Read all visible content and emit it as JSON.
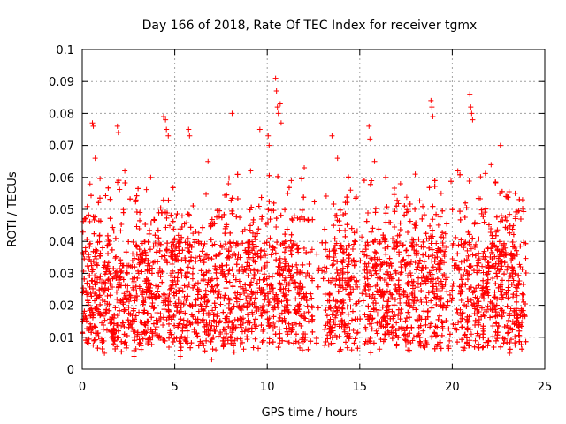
{
  "chart_data": {
    "type": "scatter",
    "title": "Day 166 of 2018, Rate Of TEC Index for receiver tgmx",
    "xlabel": "GPS time / hours",
    "ylabel": "ROTI / TECUs",
    "xlim": [
      0,
      25
    ],
    "ylim": [
      0,
      0.1
    ],
    "xticks": [
      0,
      5,
      10,
      15,
      20,
      25
    ],
    "xtick_labels": [
      "0",
      "5",
      "10",
      "15",
      "20",
      "25"
    ],
    "yticks": [
      0,
      0.01,
      0.02,
      0.03,
      0.04,
      0.05,
      0.06,
      0.07,
      0.08,
      0.09,
      0.1
    ],
    "ytick_labels": [
      "0",
      "0.01",
      "0.02",
      "0.03",
      "0.04",
      "0.05",
      "0.06",
      "0.07",
      "0.08",
      "0.09",
      "0.1"
    ],
    "grid": true,
    "marker": "+",
    "color": "#ff0000",
    "series": [
      {
        "name": "ROTI",
        "note": "dense band of points roughly 0.005–0.055 TECU across 0–24 h, sparse data gaps near 12.5–13 h and 15 h",
        "points": [
          [
            0.55,
            0.077
          ],
          [
            0.6,
            0.076
          ],
          [
            1.9,
            0.076
          ],
          [
            1.95,
            0.074
          ],
          [
            4.4,
            0.079
          ],
          [
            4.5,
            0.078
          ],
          [
            4.55,
            0.075
          ],
          [
            4.65,
            0.073
          ],
          [
            5.75,
            0.075
          ],
          [
            5.8,
            0.073
          ],
          [
            8.1,
            0.08
          ],
          [
            9.6,
            0.075
          ],
          [
            10.05,
            0.073
          ],
          [
            10.1,
            0.07
          ],
          [
            10.45,
            0.091
          ],
          [
            10.5,
            0.087
          ],
          [
            10.55,
            0.082
          ],
          [
            10.6,
            0.08
          ],
          [
            10.7,
            0.083
          ],
          [
            10.75,
            0.077
          ],
          [
            13.5,
            0.073
          ],
          [
            15.5,
            0.076
          ],
          [
            15.55,
            0.072
          ],
          [
            18.85,
            0.084
          ],
          [
            18.9,
            0.082
          ],
          [
            18.95,
            0.079
          ],
          [
            20.95,
            0.086
          ],
          [
            21.0,
            0.082
          ],
          [
            21.05,
            0.08
          ],
          [
            21.1,
            0.078
          ],
          [
            22.6,
            0.07
          ],
          [
            0.7,
            0.066
          ],
          [
            2.3,
            0.062
          ],
          [
            3.7,
            0.06
          ],
          [
            6.8,
            0.065
          ],
          [
            7.9,
            0.058
          ],
          [
            9.1,
            0.062
          ],
          [
            11.3,
            0.059
          ],
          [
            12.0,
            0.063
          ],
          [
            13.8,
            0.066
          ],
          [
            14.5,
            0.056
          ],
          [
            15.8,
            0.065
          ],
          [
            16.4,
            0.06
          ],
          [
            17.2,
            0.058
          ],
          [
            18.0,
            0.061
          ],
          [
            19.4,
            0.055
          ],
          [
            20.3,
            0.062
          ],
          [
            22.1,
            0.064
          ],
          [
            23.4,
            0.055
          ],
          [
            23.8,
            0.053
          ],
          [
            1.2,
            0.005
          ],
          [
            2.8,
            0.004
          ],
          [
            5.3,
            0.004
          ],
          [
            7.0,
            0.003
          ],
          [
            11.9,
            0.006
          ],
          [
            17.6,
            0.006
          ],
          [
            20.6,
            0.006
          ],
          [
            23.1,
            0.005
          ]
        ]
      }
    ]
  }
}
